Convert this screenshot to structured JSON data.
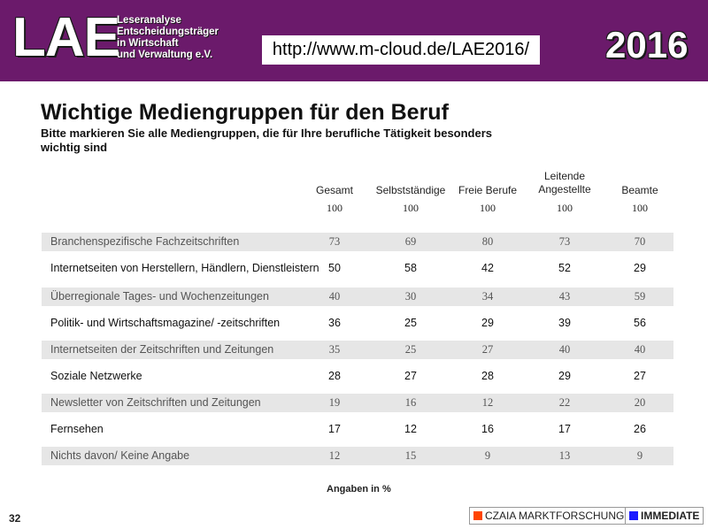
{
  "header": {
    "logo_text": "LAE",
    "logo_subtitle": [
      "Leseranalyse",
      "Entscheidungsträger",
      "in Wirtschaft",
      "und Verwaltung e.V."
    ],
    "url": "http://www.m-cloud.de/LAE2016/",
    "year": "2016",
    "banner_color": "#6b1a6b"
  },
  "title": "Wichtige Mediengruppen für den Beruf",
  "subtitle": "Bitte markieren Sie alle Mediengruppen, die für Ihre berufliche Tätigkeit besonders wichtig sind",
  "columns": [
    {
      "label": "Gesamt",
      "base": "100"
    },
    {
      "label": "Selbstständige",
      "base": "100"
    },
    {
      "label": "Freie Berufe",
      "base": "100"
    },
    {
      "label": "Leitende Angestellte",
      "base": "100"
    },
    {
      "label": "Beamte",
      "base": "100"
    }
  ],
  "rows": [
    {
      "label": "Branchenspezifische Fachzeitschriften",
      "values": [
        "73",
        "69",
        "80",
        "73",
        "70"
      ]
    },
    {
      "label": "Internetseiten von Herstellern, Händlern, Dienstleistern",
      "values": [
        "50",
        "58",
        "42",
        "52",
        "29"
      ]
    },
    {
      "label": "Überregionale Tages- und Wochenzeitungen",
      "values": [
        "40",
        "30",
        "34",
        "43",
        "59"
      ]
    },
    {
      "label": "Politik- und Wirtschaftsmagazine/ -zeitschriften",
      "values": [
        "36",
        "25",
        "29",
        "39",
        "56"
      ]
    },
    {
      "label": "Internetseiten der Zeitschriften und Zeitungen",
      "values": [
        "35",
        "25",
        "27",
        "40",
        "40"
      ]
    },
    {
      "label": "Soziale Netzwerke",
      "values": [
        "28",
        "27",
        "28",
        "29",
        "27"
      ]
    },
    {
      "label": "Newsletter von Zeitschriften und Zeitungen",
      "values": [
        "19",
        "16",
        "12",
        "22",
        "20"
      ]
    },
    {
      "label": "Fernsehen",
      "values": [
        "17",
        "12",
        "16",
        "17",
        "26"
      ]
    },
    {
      "label": "Nichts davon/ Keine Angabe",
      "values": [
        "12",
        "15",
        "9",
        "13",
        "9"
      ]
    }
  ],
  "footnote": "Angaben in %",
  "page_number": "32",
  "footer": {
    "czaia_label": "CZAIA MARKTFORSCHUNG",
    "czaia_color": "#ff4500",
    "immediate_label": "IMMEDIATE",
    "immediate_color": "#1a1aff"
  }
}
